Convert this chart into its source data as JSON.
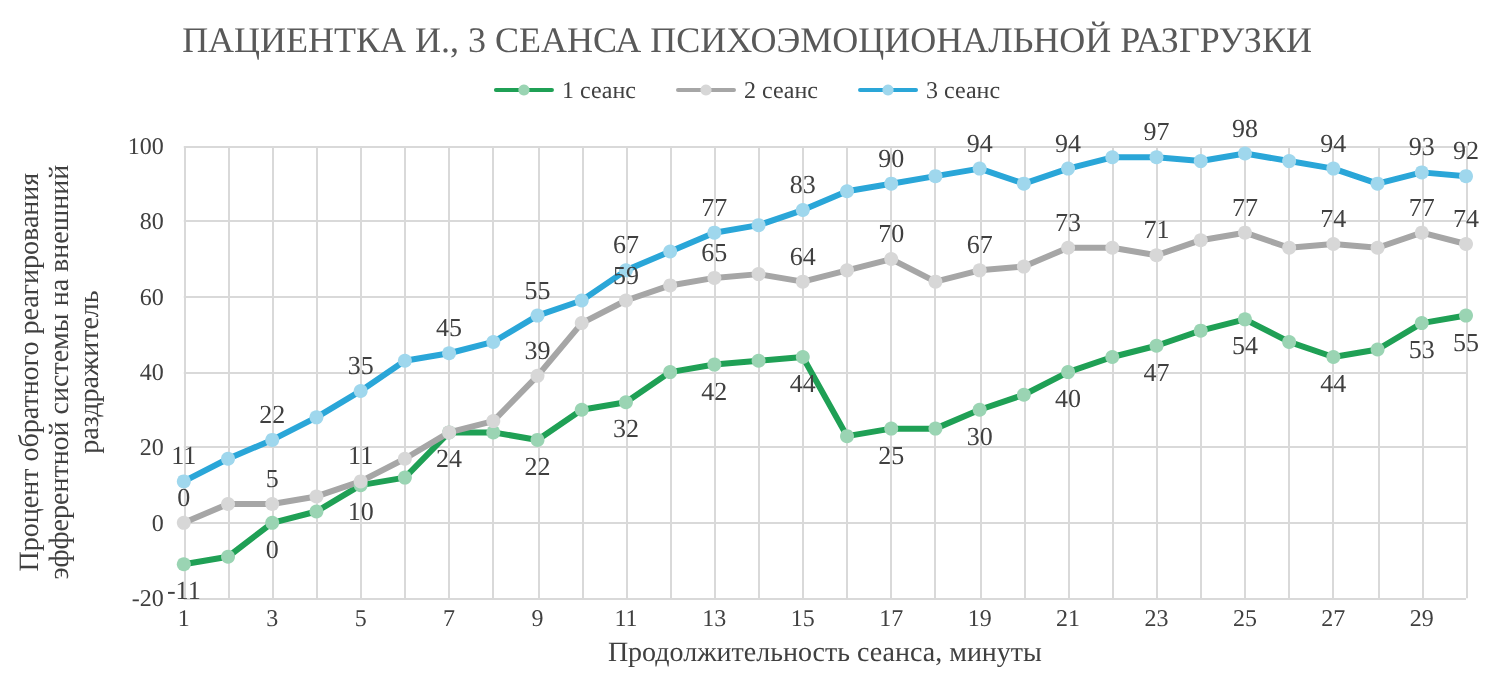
{
  "chart_data": {
    "type": "line",
    "title": "ПАЦИЕНТКА И., 3 СЕАНСА ПСИХОЭМОЦИОНАЛЬНОЙ РАЗГРУЗКИ",
    "xlabel": "Продолжительность сеанса, минуты",
    "ylabel": "Процент обратного реагирования эфферентной системы на внешний раздражитель",
    "x": [
      1,
      2,
      3,
      4,
      5,
      6,
      7,
      8,
      9,
      10,
      11,
      12,
      13,
      14,
      15,
      16,
      17,
      18,
      19,
      20,
      21,
      22,
      23,
      24,
      25,
      26,
      27,
      28,
      29,
      30
    ],
    "xlim": [
      1,
      30
    ],
    "xticks": [
      1,
      {
        "value": 2,
        "label": null
      },
      3,
      {
        "value": 4,
        "label": null
      },
      5,
      {
        "value": 6,
        "label": null
      },
      7,
      {
        "value": 8,
        "label": null
      },
      9,
      {
        "value": 10,
        "label": null
      },
      11,
      {
        "value": 12,
        "label": null
      },
      13,
      {
        "value": 14,
        "label": null
      },
      15,
      {
        "value": 16,
        "label": null
      },
      17,
      {
        "value": 18,
        "label": null
      },
      19,
      {
        "value": 20,
        "label": null
      },
      21,
      {
        "value": 22,
        "label": null
      },
      23,
      {
        "value": 24,
        "label": null
      },
      25,
      {
        "value": 26,
        "label": null
      },
      27,
      {
        "value": 28,
        "label": null
      },
      29,
      {
        "value": 30,
        "label": null
      }
    ],
    "ylim": [
      -20,
      100
    ],
    "yticks": [
      -20,
      0,
      20,
      40,
      60,
      80,
      100
    ],
    "grid": true,
    "legend": "top",
    "marker": "circle",
    "line_style": "solid",
    "series": [
      {
        "name": "1 сеанс",
        "color": "#1fa055",
        "values": [
          -11,
          -9,
          0,
          3,
          10,
          12,
          24,
          24,
          22,
          30,
          32,
          40,
          42,
          43,
          44,
          23,
          25,
          25,
          30,
          34,
          40,
          44,
          47,
          51,
          54,
          48,
          44,
          46,
          53,
          55
        ],
        "value_labels": [
          "-11",
          null,
          "0",
          null,
          "10",
          null,
          "24",
          null,
          "22",
          null,
          "32",
          null,
          "42",
          null,
          "44",
          null,
          "25",
          null,
          "30",
          null,
          "40",
          null,
          "47",
          null,
          "54",
          null,
          "44",
          null,
          "53",
          "55"
        ]
      },
      {
        "name": "2 сеанс",
        "color": "#a6a6a6",
        "values": [
          0,
          5,
          5,
          7,
          11,
          17,
          24,
          27,
          39,
          53,
          59,
          63,
          65,
          66,
          64,
          67,
          70,
          64,
          67,
          68,
          73,
          73,
          71,
          75,
          77,
          73,
          74,
          73,
          77,
          74
        ],
        "value_labels": [
          "0",
          null,
          "5",
          null,
          "11",
          null,
          null,
          null,
          "39",
          null,
          "59",
          null,
          "65",
          null,
          "64",
          null,
          "70",
          null,
          "67",
          null,
          "73",
          null,
          "71",
          null,
          "77",
          null,
          "74",
          null,
          "77",
          "74"
        ]
      },
      {
        "name": "3 сеанс",
        "color": "#2aa6d8",
        "values": [
          11,
          17,
          22,
          28,
          35,
          43,
          45,
          48,
          55,
          59,
          67,
          72,
          77,
          79,
          83,
          88,
          90,
          92,
          94,
          90,
          94,
          97,
          97,
          96,
          98,
          96,
          94,
          90,
          93,
          92
        ],
        "value_labels": [
          "11",
          null,
          "22",
          null,
          "35",
          null,
          "45",
          null,
          "55",
          null,
          "67",
          null,
          "77",
          null,
          "83",
          null,
          "90",
          null,
          "94",
          null,
          "94",
          null,
          "97",
          null,
          "98",
          null,
          "94",
          null,
          "93",
          "92"
        ]
      }
    ]
  }
}
